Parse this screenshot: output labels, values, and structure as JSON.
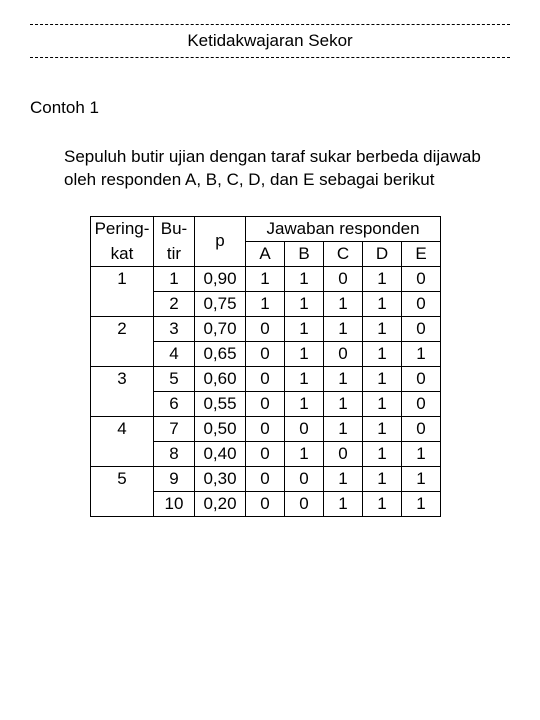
{
  "header": {
    "title": "Ketidakwajaran Sekor"
  },
  "section": {
    "title": "Contoh 1"
  },
  "paragraph": "Sepuluh butir ujian dengan taraf sukar berbeda dijawab oleh responden A, B, C, D, dan E sebagai berikut",
  "table": {
    "headers": {
      "peringkat_l1": "Pering-",
      "peringkat_l2": "kat",
      "butir_l1": "Bu-",
      "butir_l2": "tir",
      "p": "p",
      "jawaban": "Jawaban responden",
      "resp": [
        "A",
        "B",
        "C",
        "D",
        "E"
      ]
    },
    "ranks": [
      {
        "rank": "1",
        "rows": [
          {
            "b": "1",
            "p": "0,90",
            "r": [
              "1",
              "1",
              "0",
              "1",
              "0"
            ]
          },
          {
            "b": "2",
            "p": "0,75",
            "r": [
              "1",
              "1",
              "1",
              "1",
              "0"
            ]
          }
        ]
      },
      {
        "rank": "2",
        "rows": [
          {
            "b": "3",
            "p": "0,70",
            "r": [
              "0",
              "1",
              "1",
              "1",
              "0"
            ]
          },
          {
            "b": "4",
            "p": "0,65",
            "r": [
              "0",
              "1",
              "0",
              "1",
              "1"
            ]
          }
        ]
      },
      {
        "rank": "3",
        "rows": [
          {
            "b": "5",
            "p": "0,60",
            "r": [
              "0",
              "1",
              "1",
              "1",
              "0"
            ]
          },
          {
            "b": "6",
            "p": "0,55",
            "r": [
              "0",
              "1",
              "1",
              "1",
              "0"
            ]
          }
        ]
      },
      {
        "rank": "4",
        "rows": [
          {
            "b": "7",
            "p": "0,50",
            "r": [
              "0",
              "0",
              "1",
              "1",
              "0"
            ]
          },
          {
            "b": "8",
            "p": "0,40",
            "r": [
              "0",
              "1",
              "0",
              "1",
              "1"
            ]
          }
        ]
      },
      {
        "rank": "5",
        "rows": [
          {
            "b": "9",
            "p": "0,30",
            "r": [
              "0",
              "0",
              "1",
              "1",
              "1"
            ]
          },
          {
            "b": "10",
            "p": "0,20",
            "r": [
              "0",
              "0",
              "1",
              "1",
              "1"
            ]
          }
        ]
      }
    ]
  }
}
